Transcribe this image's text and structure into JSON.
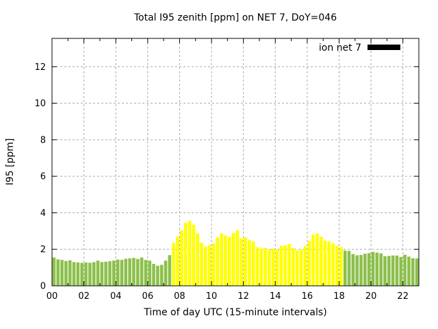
{
  "chart_data": {
    "type": "bar",
    "title": "Total I95 zenith [ppm] on NET 7, DoY=046",
    "xlabel": "Time of day UTC (15-minute intervals)",
    "ylabel": "I95 [ppm]",
    "xlim_hours": [
      0,
      23
    ],
    "ylim": [
      0,
      13.55
    ],
    "x_major_ticks_hours": [
      0,
      2,
      4,
      6,
      8,
      10,
      12,
      14,
      16,
      18,
      20,
      22
    ],
    "x_tick_labels": [
      "00",
      "02",
      "04",
      "06",
      "08",
      "10",
      "12",
      "14",
      "16",
      "18",
      "20",
      "22"
    ],
    "x_minor_tick_step_hours": 1,
    "y_ticks": [
      0,
      2,
      4,
      6,
      8,
      10,
      12
    ],
    "grid": true,
    "legend": {
      "label": "ion net 7",
      "swatch_color": "#000000",
      "position": "top-right-inside"
    },
    "bar_interval_hours": 0.25,
    "palette": {
      "green": "#8cc04c",
      "yellow": "#ffff00"
    },
    "color_runs": [
      {
        "color": "green",
        "count": 30
      },
      {
        "color": "yellow",
        "count": 43
      },
      {
        "color": "green",
        "count": 19
      }
    ],
    "times": [
      "00:00",
      "00:15",
      "00:30",
      "00:45",
      "01:00",
      "01:15",
      "01:30",
      "01:45",
      "02:00",
      "02:15",
      "02:30",
      "02:45",
      "03:00",
      "03:15",
      "03:30",
      "03:45",
      "04:00",
      "04:15",
      "04:30",
      "04:45",
      "05:00",
      "05:15",
      "05:30",
      "05:45",
      "06:00",
      "06:15",
      "06:30",
      "06:45",
      "07:00",
      "07:15",
      "07:30",
      "07:45",
      "08:00",
      "08:15",
      "08:30",
      "08:45",
      "09:00",
      "09:15",
      "09:30",
      "09:45",
      "10:00",
      "10:15",
      "10:30",
      "10:45",
      "11:00",
      "11:15",
      "11:30",
      "11:45",
      "12:00",
      "12:15",
      "12:30",
      "12:45",
      "13:00",
      "13:15",
      "13:30",
      "13:45",
      "14:00",
      "14:15",
      "14:30",
      "14:45",
      "15:00",
      "15:15",
      "15:30",
      "15:45",
      "16:00",
      "16:15",
      "16:30",
      "16:45",
      "17:00",
      "17:15",
      "17:30",
      "17:45",
      "18:00",
      "18:15",
      "18:30",
      "18:45",
      "19:00",
      "19:15",
      "19:30",
      "19:45",
      "20:00",
      "20:15",
      "20:30",
      "20:45",
      "21:00",
      "21:15",
      "21:30",
      "21:45",
      "22:00",
      "22:15",
      "22:30",
      "22:45"
    ],
    "values": [
      1.55,
      1.45,
      1.42,
      1.36,
      1.4,
      1.3,
      1.28,
      1.26,
      1.28,
      1.26,
      1.3,
      1.38,
      1.3,
      1.32,
      1.35,
      1.38,
      1.44,
      1.42,
      1.48,
      1.5,
      1.53,
      1.47,
      1.55,
      1.42,
      1.38,
      1.2,
      1.1,
      1.15,
      1.38,
      1.68,
      2.35,
      2.7,
      3.05,
      3.45,
      3.55,
      3.35,
      2.88,
      2.36,
      2.15,
      2.22,
      2.32,
      2.65,
      2.88,
      2.75,
      2.68,
      2.9,
      3.05,
      2.6,
      2.67,
      2.5,
      2.42,
      2.11,
      2.04,
      2.07,
      1.98,
      2.04,
      1.98,
      2.19,
      2.22,
      2.29,
      2.07,
      1.94,
      1.97,
      2.17,
      2.45,
      2.8,
      2.87,
      2.69,
      2.47,
      2.44,
      2.32,
      2.19,
      2.12,
      1.93,
      1.91,
      1.74,
      1.67,
      1.69,
      1.76,
      1.79,
      1.86,
      1.82,
      1.78,
      1.62,
      1.64,
      1.66,
      1.66,
      1.58,
      1.7,
      1.6,
      1.51,
      1.5
    ]
  }
}
